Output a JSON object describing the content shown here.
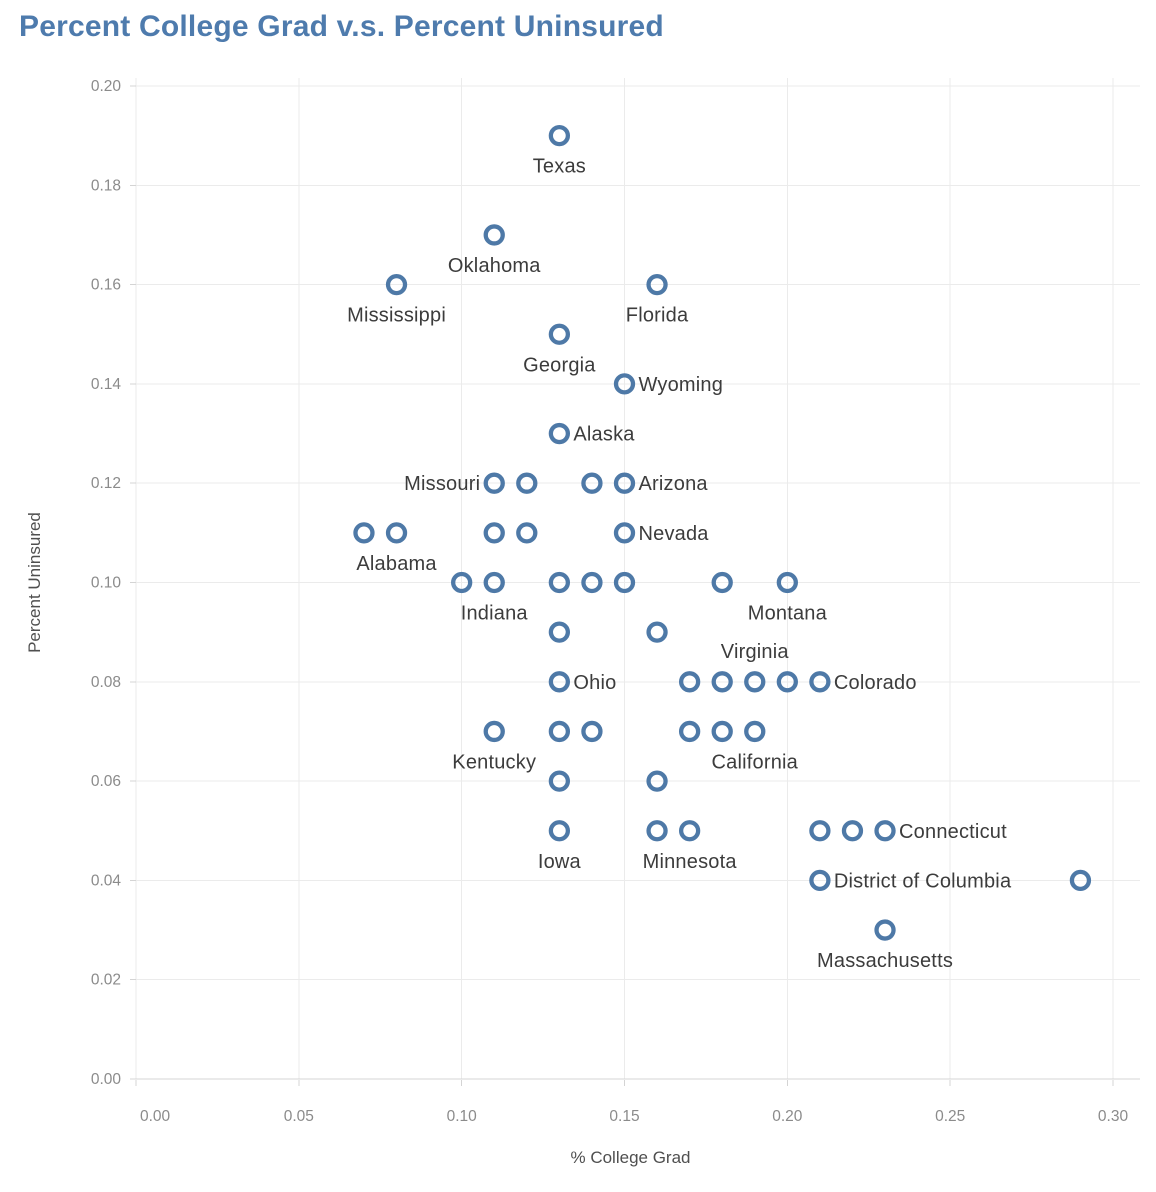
{
  "chart_data": {
    "type": "scatter",
    "title": "Percent College Grad v.s. Percent Uninsured",
    "xlabel": "% College Grad",
    "ylabel": "Percent Uninsured",
    "xlim": [
      0,
      0.3
    ],
    "ylim": [
      0,
      0.2
    ],
    "xticks": [
      0,
      0.05,
      0.1,
      0.15,
      0.2,
      0.25,
      0.3
    ],
    "yticks": [
      0,
      0.02,
      0.04,
      0.06,
      0.08,
      0.1,
      0.12,
      0.14,
      0.16,
      0.18,
      0.2
    ],
    "grid": true,
    "legend": false,
    "marker": {
      "shape": "open-circle",
      "color": "#4e79a7"
    },
    "points": [
      {
        "x": 0.13,
        "y": 0.19,
        "state": "Texas",
        "label_pos": "below"
      },
      {
        "x": 0.11,
        "y": 0.17,
        "state": "Oklahoma",
        "label_pos": "below"
      },
      {
        "x": 0.08,
        "y": 0.16,
        "state": "Mississippi",
        "label_pos": "below"
      },
      {
        "x": 0.16,
        "y": 0.16,
        "state": "Florida",
        "label_pos": "below"
      },
      {
        "x": 0.13,
        "y": 0.15,
        "state": "Georgia",
        "label_pos": "below"
      },
      {
        "x": 0.15,
        "y": 0.14,
        "state": "Wyoming",
        "label_pos": "right"
      },
      {
        "x": 0.13,
        "y": 0.13,
        "state": "Alaska",
        "label_pos": "right"
      },
      {
        "x": 0.11,
        "y": 0.12,
        "state": "Missouri",
        "label_pos": "left"
      },
      {
        "x": 0.12,
        "y": 0.12
      },
      {
        "x": 0.14,
        "y": 0.12
      },
      {
        "x": 0.15,
        "y": 0.12,
        "state": "Arizona",
        "label_pos": "right"
      },
      {
        "x": 0.07,
        "y": 0.11
      },
      {
        "x": 0.08,
        "y": 0.11,
        "state": "Alabama",
        "label_pos": "below"
      },
      {
        "x": 0.11,
        "y": 0.11
      },
      {
        "x": 0.12,
        "y": 0.11
      },
      {
        "x": 0.15,
        "y": 0.11,
        "state": "Nevada",
        "label_pos": "right"
      },
      {
        "x": 0.1,
        "y": 0.1
      },
      {
        "x": 0.11,
        "y": 0.1,
        "state": "Indiana",
        "label_pos": "below"
      },
      {
        "x": 0.13,
        "y": 0.1
      },
      {
        "x": 0.14,
        "y": 0.1
      },
      {
        "x": 0.15,
        "y": 0.1
      },
      {
        "x": 0.18,
        "y": 0.1
      },
      {
        "x": 0.2,
        "y": 0.1,
        "state": "Montana",
        "label_pos": "below"
      },
      {
        "x": 0.13,
        "y": 0.09
      },
      {
        "x": 0.16,
        "y": 0.09
      },
      {
        "x": 0.13,
        "y": 0.08,
        "state": "Ohio",
        "label_pos": "right"
      },
      {
        "x": 0.17,
        "y": 0.08
      },
      {
        "x": 0.18,
        "y": 0.08
      },
      {
        "x": 0.19,
        "y": 0.08,
        "state": "Virginia",
        "label_pos": "above"
      },
      {
        "x": 0.2,
        "y": 0.08
      },
      {
        "x": 0.21,
        "y": 0.08,
        "state": "Colorado",
        "label_pos": "right"
      },
      {
        "x": 0.11,
        "y": 0.07,
        "state": "Kentucky",
        "label_pos": "below"
      },
      {
        "x": 0.13,
        "y": 0.07
      },
      {
        "x": 0.14,
        "y": 0.07
      },
      {
        "x": 0.17,
        "y": 0.07
      },
      {
        "x": 0.18,
        "y": 0.07
      },
      {
        "x": 0.19,
        "y": 0.07,
        "state": "California",
        "label_pos": "below"
      },
      {
        "x": 0.13,
        "y": 0.06
      },
      {
        "x": 0.16,
        "y": 0.06
      },
      {
        "x": 0.13,
        "y": 0.05,
        "state": "Iowa",
        "label_pos": "below"
      },
      {
        "x": 0.16,
        "y": 0.05
      },
      {
        "x": 0.17,
        "y": 0.05,
        "state": "Minnesota",
        "label_pos": "below"
      },
      {
        "x": 0.21,
        "y": 0.05
      },
      {
        "x": 0.22,
        "y": 0.05
      },
      {
        "x": 0.23,
        "y": 0.05,
        "state": "Connecticut",
        "label_pos": "right"
      },
      {
        "x": 0.21,
        "y": 0.04,
        "state": "District of Columbia",
        "label_pos": "right"
      },
      {
        "x": 0.29,
        "y": 0.04
      },
      {
        "x": 0.23,
        "y": 0.03,
        "state": "Massachusetts",
        "label_pos": "below"
      }
    ]
  },
  "colors": {
    "title": "#4e7bad",
    "background": "#ffffff",
    "grid": "#ebebeb",
    "axis_line": "#d4d4d4",
    "tick_mark": "#d4d4d4",
    "tick_text": "#8b8b8b",
    "axis_title_text": "#4f4f4f",
    "point_label_text": "#3c3c3c",
    "marker": "#4e79a7"
  }
}
